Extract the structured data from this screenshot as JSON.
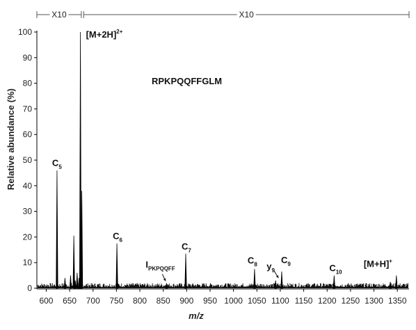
{
  "chart_data": {
    "type": "line",
    "xlabel": "m/z",
    "ylabel": "Relative abundance (%)",
    "xlim": [
      580,
      1375
    ],
    "ylim": [
      0,
      100
    ],
    "x_ticks": [
      600,
      650,
      700,
      750,
      800,
      850,
      900,
      950,
      1000,
      1050,
      1100,
      1150,
      1200,
      1250,
      1300,
      1350
    ],
    "y_ticks": [
      0,
      10,
      20,
      30,
      40,
      50,
      60,
      70,
      80,
      90,
      100
    ],
    "peptide_label": "RPKPQQFFGLM",
    "magnification": [
      {
        "label": "X10",
        "from": 580,
        "to": 675
      },
      {
        "label": "X10",
        "from": 680,
        "to": 1375
      }
    ],
    "peaks": [
      {
        "x": 623,
        "y": 46
      },
      {
        "x": 640,
        "y": 4
      },
      {
        "x": 652,
        "y": 5
      },
      {
        "x": 659,
        "y": 20.5
      },
      {
        "x": 662,
        "y": 3
      },
      {
        "x": 666,
        "y": 6
      },
      {
        "x": 670,
        "y": 4
      },
      {
        "x": 673,
        "y": 100
      },
      {
        "x": 676,
        "y": 38
      },
      {
        "x": 751,
        "y": 17.5
      },
      {
        "x": 857,
        "y": 2
      },
      {
        "x": 898,
        "y": 13.5
      },
      {
        "x": 1045,
        "y": 7.5
      },
      {
        "x": 1090,
        "y": 3
      },
      {
        "x": 1103,
        "y": 6.5
      },
      {
        "x": 1215,
        "y": 5
      },
      {
        "x": 1335,
        "y": 2.5
      },
      {
        "x": 1348,
        "y": 5
      }
    ],
    "annotations": [
      {
        "base": "[M+2H]",
        "sup": "2+",
        "sub": "",
        "x": 673,
        "y": 100
      },
      {
        "base": "C",
        "sup": "",
        "sub": "5",
        "x": 623,
        "y": 46
      },
      {
        "base": "C",
        "sup": "",
        "sub": "6",
        "x": 751,
        "y": 17.5
      },
      {
        "base": "C",
        "sup": "",
        "sub": "7",
        "x": 898,
        "y": 13.5
      },
      {
        "base": "I",
        "sup": "",
        "sub": "PKPQQFF",
        "x": 857,
        "y": 2
      },
      {
        "base": "C",
        "sup": "",
        "sub": "8",
        "x": 1045,
        "y": 7.5
      },
      {
        "base": "y",
        "sup": "",
        "sub": "9",
        "x": 1090,
        "y": 3
      },
      {
        "base": "C",
        "sup": "",
        "sub": "9",
        "x": 1103,
        "y": 6.5
      },
      {
        "base": "C",
        "sup": "",
        "sub": "10",
        "x": 1215,
        "y": 5
      },
      {
        "base": "[M+H]",
        "sup": "+",
        "sub": "",
        "x": 1348,
        "y": 5
      }
    ]
  }
}
